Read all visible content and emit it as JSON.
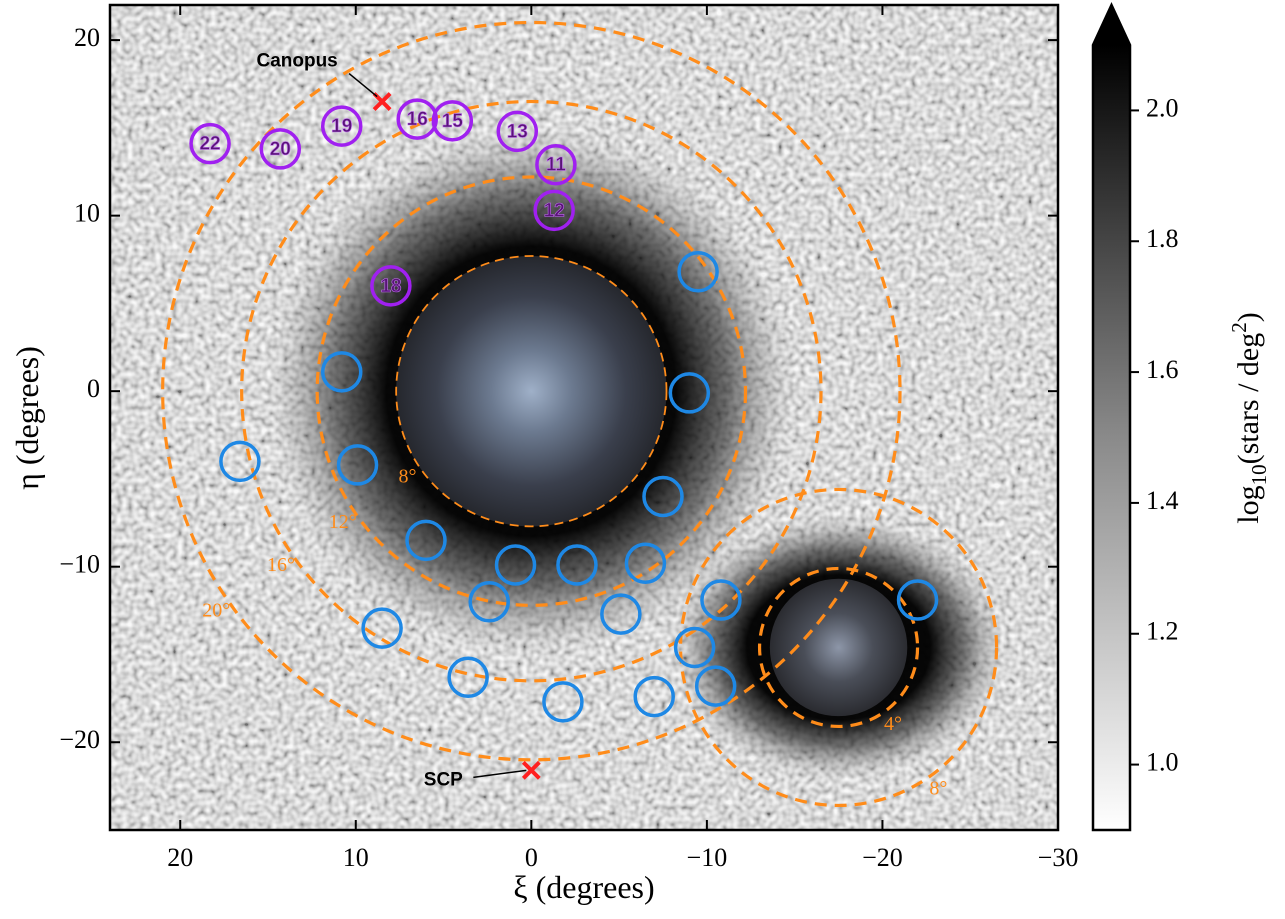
{
  "chart_data": {
    "type": "scatter",
    "xlabel": "ξ (degrees)",
    "ylabel": "η (degrees)",
    "xlim": [
      24,
      -30
    ],
    "ylim": [
      -25,
      22
    ],
    "xticks": [
      20,
      10,
      0,
      {
        "value": -10,
        "label": "−10"
      },
      {
        "value": -20,
        "label": "−20"
      },
      {
        "value": -30,
        "label": "−30"
      }
    ],
    "yticks": [
      {
        "value": -20,
        "label": "−20"
      },
      {
        "value": -10,
        "label": "−10"
      },
      0,
      10,
      20
    ],
    "series": [
      {
        "color": "#1e88e5",
        "x": [
          -9.5,
          10.8,
          -9.0,
          16.6,
          9.9,
          -7.5,
          6.0,
          0.9,
          -2.6,
          -6.5,
          2.4,
          -5.1,
          -10.8,
          -22.0,
          8.5,
          -9.3,
          -10.5,
          3.6,
          -1.8,
          -7.0
        ],
        "y": [
          6.8,
          1.1,
          -0.1,
          -4.0,
          -4.2,
          -6.0,
          -8.5,
          -9.9,
          -9.9,
          -9.8,
          -12.0,
          -12.7,
          -11.9,
          -11.9,
          -13.5,
          -14.6,
          -16.8,
          -16.3,
          -17.7,
          -17.4
        ]
      },
      {
        "color": "#a020f0",
        "x": [
          18.3,
          14.3,
          10.8,
          6.5,
          4.5,
          0.8,
          -1.4,
          -1.3,
          8.0
        ],
        "y": [
          14.1,
          13.8,
          15.1,
          15.5,
          15.4,
          14.8,
          12.9,
          10.3,
          6.0
        ],
        "labels": [
          "22",
          "20",
          "19",
          "16",
          "15",
          "13",
          "11",
          "12",
          "18"
        ]
      }
    ],
    "rings": [
      {
        "x": 0,
        "y": 0,
        "r": 7.7,
        "label": "8°"
      },
      {
        "x": 0,
        "y": 0,
        "r": 12.2,
        "label": "12°"
      },
      {
        "x": 0,
        "y": 0,
        "r": 16.5,
        "label": "16°"
      },
      {
        "x": 0,
        "y": 0,
        "r": 21.0,
        "label": "20°"
      },
      {
        "x": -17.5,
        "y": -14.6,
        "r": 4.5,
        "label": "4°"
      },
      {
        "x": -17.5,
        "y": -14.6,
        "r": 9.0,
        "label": "8°"
      }
    ],
    "ring_color": "#ff8c1a",
    "points": [
      {
        "label": "Canopus",
        "x": 8.5,
        "y": 16.5
      },
      {
        "label": "SCP",
        "x": 0,
        "y": -21.6
      }
    ],
    "point_color": "#ff2020",
    "colorbar": {
      "lim": [
        0.9,
        2.1
      ],
      "ticks": [
        {
          "value": 1.0,
          "label": "1.0"
        },
        1.2,
        1.4,
        1.6,
        1.8,
        {
          "value": 2.0,
          "label": "2.0"
        }
      ],
      "label": {
        "pre": "log",
        "sub": "10",
        "mid": "(stars / deg",
        "sup": "2",
        "post": ")"
      }
    }
  }
}
